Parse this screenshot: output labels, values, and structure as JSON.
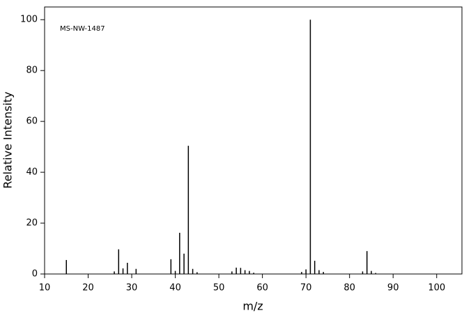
{
  "chart_data": {
    "type": "stem",
    "annotation": "MS-NW-1487",
    "xlabel": "m/z",
    "ylabel": "Relative Intensity",
    "color": "#000000",
    "x": [
      15,
      26,
      27,
      28,
      29,
      31,
      39,
      40,
      41,
      42,
      43,
      44,
      45,
      53,
      54,
      55,
      56,
      57,
      58,
      69,
      70,
      71,
      72,
      73,
      74,
      83,
      84,
      85,
      86
    ],
    "values": [
      5.5,
      1,
      9.7,
      2.2,
      4.4,
      2,
      5.8,
      1.2,
      16.2,
      8,
      50.4,
      2,
      0.7,
      1,
      2.5,
      2.4,
      1.5,
      1.2,
      0.5,
      0.8,
      1.8,
      100,
      5.2,
      1.5,
      0.8,
      1,
      9,
      1.2,
      0.4
    ],
    "xlim": [
      10,
      105.8
    ],
    "xticks": [
      10,
      20,
      30,
      40,
      50,
      60,
      70,
      80,
      90,
      100
    ],
    "ylim": [
      0,
      105
    ],
    "yticks": [
      0,
      20,
      40,
      60,
      80,
      100
    ]
  }
}
